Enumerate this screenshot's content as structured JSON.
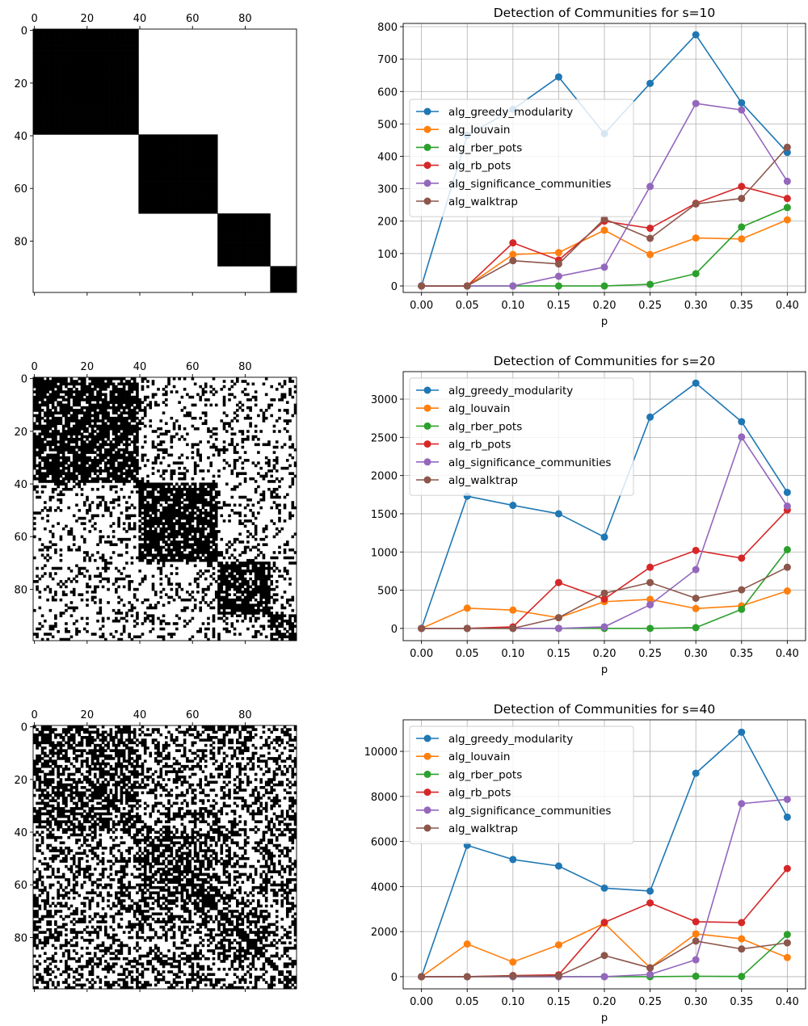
{
  "chart_data": [
    {
      "type": "heatmap",
      "image_kind": "adjacency-matrix",
      "size": 100,
      "blocks": [
        {
          "start": 0,
          "end": 40
        },
        {
          "start": 40,
          "end": 70
        },
        {
          "start": 70,
          "end": 90
        },
        {
          "start": 90,
          "end": 100
        }
      ],
      "in_block_density": 1.0,
      "out_block_density": 0.0,
      "x_ticks": [
        "0",
        "20",
        "40",
        "60",
        "80"
      ],
      "y_ticks": [
        "0",
        "20",
        "40",
        "60",
        "80"
      ],
      "colors": {
        "filled": "#000000",
        "empty": "#ffffff"
      }
    },
    {
      "type": "line",
      "title": "Detection of Communities for s=10",
      "xlabel": "p",
      "ylabel": "",
      "x": [
        0.0,
        0.05,
        0.1,
        0.15,
        0.2,
        0.25,
        0.3,
        0.35,
        0.4
      ],
      "x_tick_labels": [
        "0.00",
        "0.05",
        "0.10",
        "0.15",
        "0.20",
        "0.25",
        "0.30",
        "0.35",
        "0.40"
      ],
      "ylim": [
        -20,
        810
      ],
      "y_ticks": [
        0,
        100,
        200,
        300,
        400,
        500,
        600,
        700,
        800
      ],
      "grid": true,
      "legend": "center-left",
      "series": [
        {
          "name": "alg_greedy_modularity",
          "color": "#1f77b4",
          "values": [
            0,
            465,
            545,
            645,
            470,
            625,
            775,
            565,
            412
          ]
        },
        {
          "name": "alg_louvain",
          "color": "#ff7f0e",
          "values": [
            0,
            0,
            97,
            103,
            172,
            97,
            148,
            145,
            204
          ]
        },
        {
          "name": "alg_rber_pots",
          "color": "#2ca02c",
          "values": [
            0,
            0,
            0,
            0,
            0,
            5,
            38,
            182,
            242
          ]
        },
        {
          "name": "alg_rb_pots",
          "color": "#d62728",
          "values": [
            0,
            0,
            133,
            80,
            200,
            178,
            255,
            307,
            270
          ]
        },
        {
          "name": "alg_significance_communities",
          "color": "#9467bd",
          "values": [
            0,
            0,
            0,
            30,
            58,
            307,
            563,
            543,
            323
          ]
        },
        {
          "name": "alg_walktrap",
          "color": "#8c564b",
          "values": [
            0,
            0,
            78,
            68,
            207,
            147,
            253,
            270,
            428
          ]
        }
      ]
    },
    {
      "type": "heatmap",
      "image_kind": "adjacency-matrix",
      "size": 100,
      "blocks": [
        {
          "start": 0,
          "end": 40
        },
        {
          "start": 40,
          "end": 70
        },
        {
          "start": 70,
          "end": 90
        },
        {
          "start": 90,
          "end": 100
        }
      ],
      "in_block_density": 0.8,
      "out_block_density": 0.2,
      "x_ticks": [
        "0",
        "20",
        "40",
        "60",
        "80"
      ],
      "y_ticks": [
        "0",
        "20",
        "40",
        "60",
        "80"
      ],
      "colors": {
        "filled": "#000000",
        "empty": "#ffffff"
      }
    },
    {
      "type": "line",
      "title": "Detection of Communities for s=20",
      "xlabel": "p",
      "ylabel": "",
      "x": [
        0.0,
        0.05,
        0.1,
        0.15,
        0.2,
        0.25,
        0.3,
        0.35,
        0.4
      ],
      "x_tick_labels": [
        "0.00",
        "0.05",
        "0.10",
        "0.15",
        "0.20",
        "0.25",
        "0.30",
        "0.35",
        "0.40"
      ],
      "ylim": [
        -160,
        3360
      ],
      "y_ticks": [
        0,
        500,
        1000,
        1500,
        2000,
        2500,
        3000
      ],
      "grid": true,
      "legend": "top-left",
      "series": [
        {
          "name": "alg_greedy_modularity",
          "color": "#1f77b4",
          "values": [
            0,
            1730,
            1610,
            1500,
            1195,
            2765,
            3210,
            2705,
            1780
          ]
        },
        {
          "name": "alg_louvain",
          "color": "#ff7f0e",
          "values": [
            0,
            265,
            240,
            140,
            350,
            380,
            260,
            295,
            490
          ]
        },
        {
          "name": "alg_rber_pots",
          "color": "#2ca02c",
          "values": [
            0,
            0,
            0,
            0,
            0,
            0,
            10,
            250,
            1030
          ]
        },
        {
          "name": "alg_rb_pots",
          "color": "#d62728",
          "values": [
            0,
            0,
            20,
            600,
            385,
            800,
            1020,
            920,
            1550
          ]
        },
        {
          "name": "alg_significance_communities",
          "color": "#9467bd",
          "values": [
            0,
            0,
            0,
            0,
            20,
            310,
            770,
            2505,
            1600
          ]
        },
        {
          "name": "alg_walktrap",
          "color": "#8c564b",
          "values": [
            0,
            0,
            0,
            140,
            460,
            600,
            395,
            505,
            800
          ]
        }
      ]
    },
    {
      "type": "heatmap",
      "image_kind": "adjacency-matrix",
      "size": 100,
      "blocks": [
        {
          "start": 0,
          "end": 40
        },
        {
          "start": 40,
          "end": 70
        },
        {
          "start": 70,
          "end": 90
        },
        {
          "start": 90,
          "end": 100
        }
      ],
      "in_block_density": 0.6,
      "out_block_density": 0.4,
      "x_ticks": [
        "0",
        "20",
        "40",
        "60",
        "80"
      ],
      "y_ticks": [
        "0",
        "20",
        "40",
        "60",
        "80"
      ],
      "colors": {
        "filled": "#000000",
        "empty": "#ffffff"
      }
    },
    {
      "type": "line",
      "title": "Detection of Communities for s=40",
      "xlabel": "p",
      "ylabel": "",
      "x": [
        0.0,
        0.05,
        0.1,
        0.15,
        0.2,
        0.25,
        0.3,
        0.35,
        0.4
      ],
      "x_tick_labels": [
        "0.00",
        "0.05",
        "0.10",
        "0.15",
        "0.20",
        "0.25",
        "0.30",
        "0.35",
        "0.40"
      ],
      "ylim": [
        -540,
        11400
      ],
      "y_ticks": [
        0,
        2000,
        4000,
        6000,
        8000,
        10000
      ],
      "grid": true,
      "legend": "top-left",
      "series": [
        {
          "name": "alg_greedy_modularity",
          "color": "#1f77b4",
          "values": [
            0,
            5830,
            5200,
            4910,
            3930,
            3800,
            9030,
            10850,
            7080
          ]
        },
        {
          "name": "alg_louvain",
          "color": "#ff7f0e",
          "values": [
            0,
            1450,
            650,
            1410,
            2370,
            400,
            1900,
            1680,
            850
          ]
        },
        {
          "name": "alg_rber_pots",
          "color": "#2ca02c",
          "values": [
            0,
            0,
            0,
            0,
            0,
            0,
            20,
            10,
            1870
          ]
        },
        {
          "name": "alg_rb_pots",
          "color": "#d62728",
          "values": [
            0,
            0,
            50,
            80,
            2410,
            3270,
            2440,
            2400,
            4800
          ]
        },
        {
          "name": "alg_significance_communities",
          "color": "#9467bd",
          "values": [
            0,
            0,
            0,
            0,
            0,
            100,
            750,
            7680,
            7870
          ]
        },
        {
          "name": "alg_walktrap",
          "color": "#8c564b",
          "values": [
            0,
            0,
            30,
            40,
            940,
            390,
            1580,
            1230,
            1500
          ]
        }
      ]
    }
  ]
}
